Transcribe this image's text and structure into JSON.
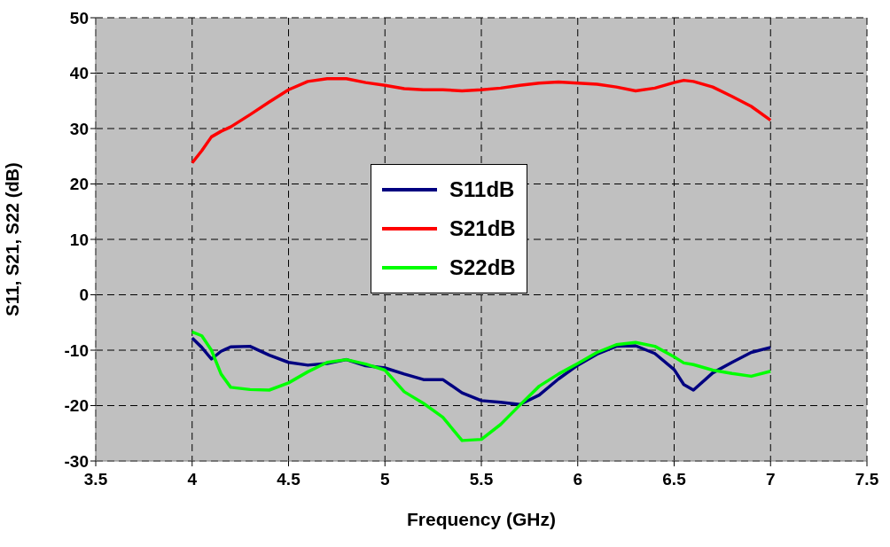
{
  "chart_data": {
    "type": "line",
    "xlabel": "Frequency (GHz)",
    "ylabel": "S11, S21, S22 (dB)",
    "x": [
      4.0,
      4.05,
      4.1,
      4.15,
      4.2,
      4.3,
      4.4,
      4.5,
      4.6,
      4.7,
      4.8,
      4.9,
      5.0,
      5.1,
      5.2,
      5.3,
      5.4,
      5.5,
      5.6,
      5.7,
      5.8,
      5.9,
      6.0,
      6.1,
      6.2,
      6.3,
      6.4,
      6.5,
      6.55,
      6.6,
      6.7,
      6.8,
      6.9,
      7.0
    ],
    "series": [
      {
        "name": "S11dB",
        "color": "#000080",
        "values": [
          -7.8,
          -9.5,
          -11.6,
          -10.2,
          -9.4,
          -9.3,
          -10.9,
          -12.2,
          -12.7,
          -12.4,
          -11.7,
          -12.8,
          -13.2,
          -14.3,
          -15.3,
          -15.3,
          -17.7,
          -19.1,
          -19.4,
          -19.8,
          -18.1,
          -15.2,
          -12.7,
          -10.7,
          -9.3,
          -9.2,
          -10.6,
          -13.5,
          -16.2,
          -17.2,
          -14.1,
          -12.2,
          -10.4,
          -9.5
        ]
      },
      {
        "name": "S21dB",
        "color": "#ff0000",
        "values": [
          23.8,
          26,
          28.5,
          29.5,
          30.3,
          32.5,
          34.8,
          37,
          38.5,
          39,
          39,
          38.3,
          37.8,
          37.2,
          37,
          37,
          36.8,
          37,
          37.3,
          37.8,
          38.2,
          38.4,
          38.2,
          38,
          37.5,
          36.8,
          37.3,
          38.3,
          38.7,
          38.5,
          37.5,
          35.8,
          34,
          31.5
        ]
      },
      {
        "name": "S22dB",
        "color": "#00ff00",
        "values": [
          -6.7,
          -7.4,
          -10,
          -14.3,
          -16.7,
          -17.1,
          -17.2,
          -15.9,
          -13.9,
          -12.2,
          -11.7,
          -12.5,
          -13.6,
          -17.5,
          -19.6,
          -22.1,
          -26.3,
          -26.1,
          -23.4,
          -19.9,
          -16.5,
          -14.3,
          -12.4,
          -10.4,
          -9,
          -8.6,
          -9.3,
          -11.2,
          -12.3,
          -12.6,
          -13.6,
          -14.2,
          -14.7,
          -13.8
        ]
      }
    ],
    "xlim": [
      3.5,
      7.5
    ],
    "xticks": [
      3.5,
      4,
      4.5,
      5,
      5.5,
      6,
      6.5,
      7,
      7.5
    ],
    "ylim": [
      -30,
      50
    ],
    "yticks": [
      -30,
      -20,
      -10,
      0,
      10,
      20,
      30,
      40,
      50
    ],
    "grid": true,
    "legend": "center",
    "line_style": "solid",
    "marker": "none"
  }
}
